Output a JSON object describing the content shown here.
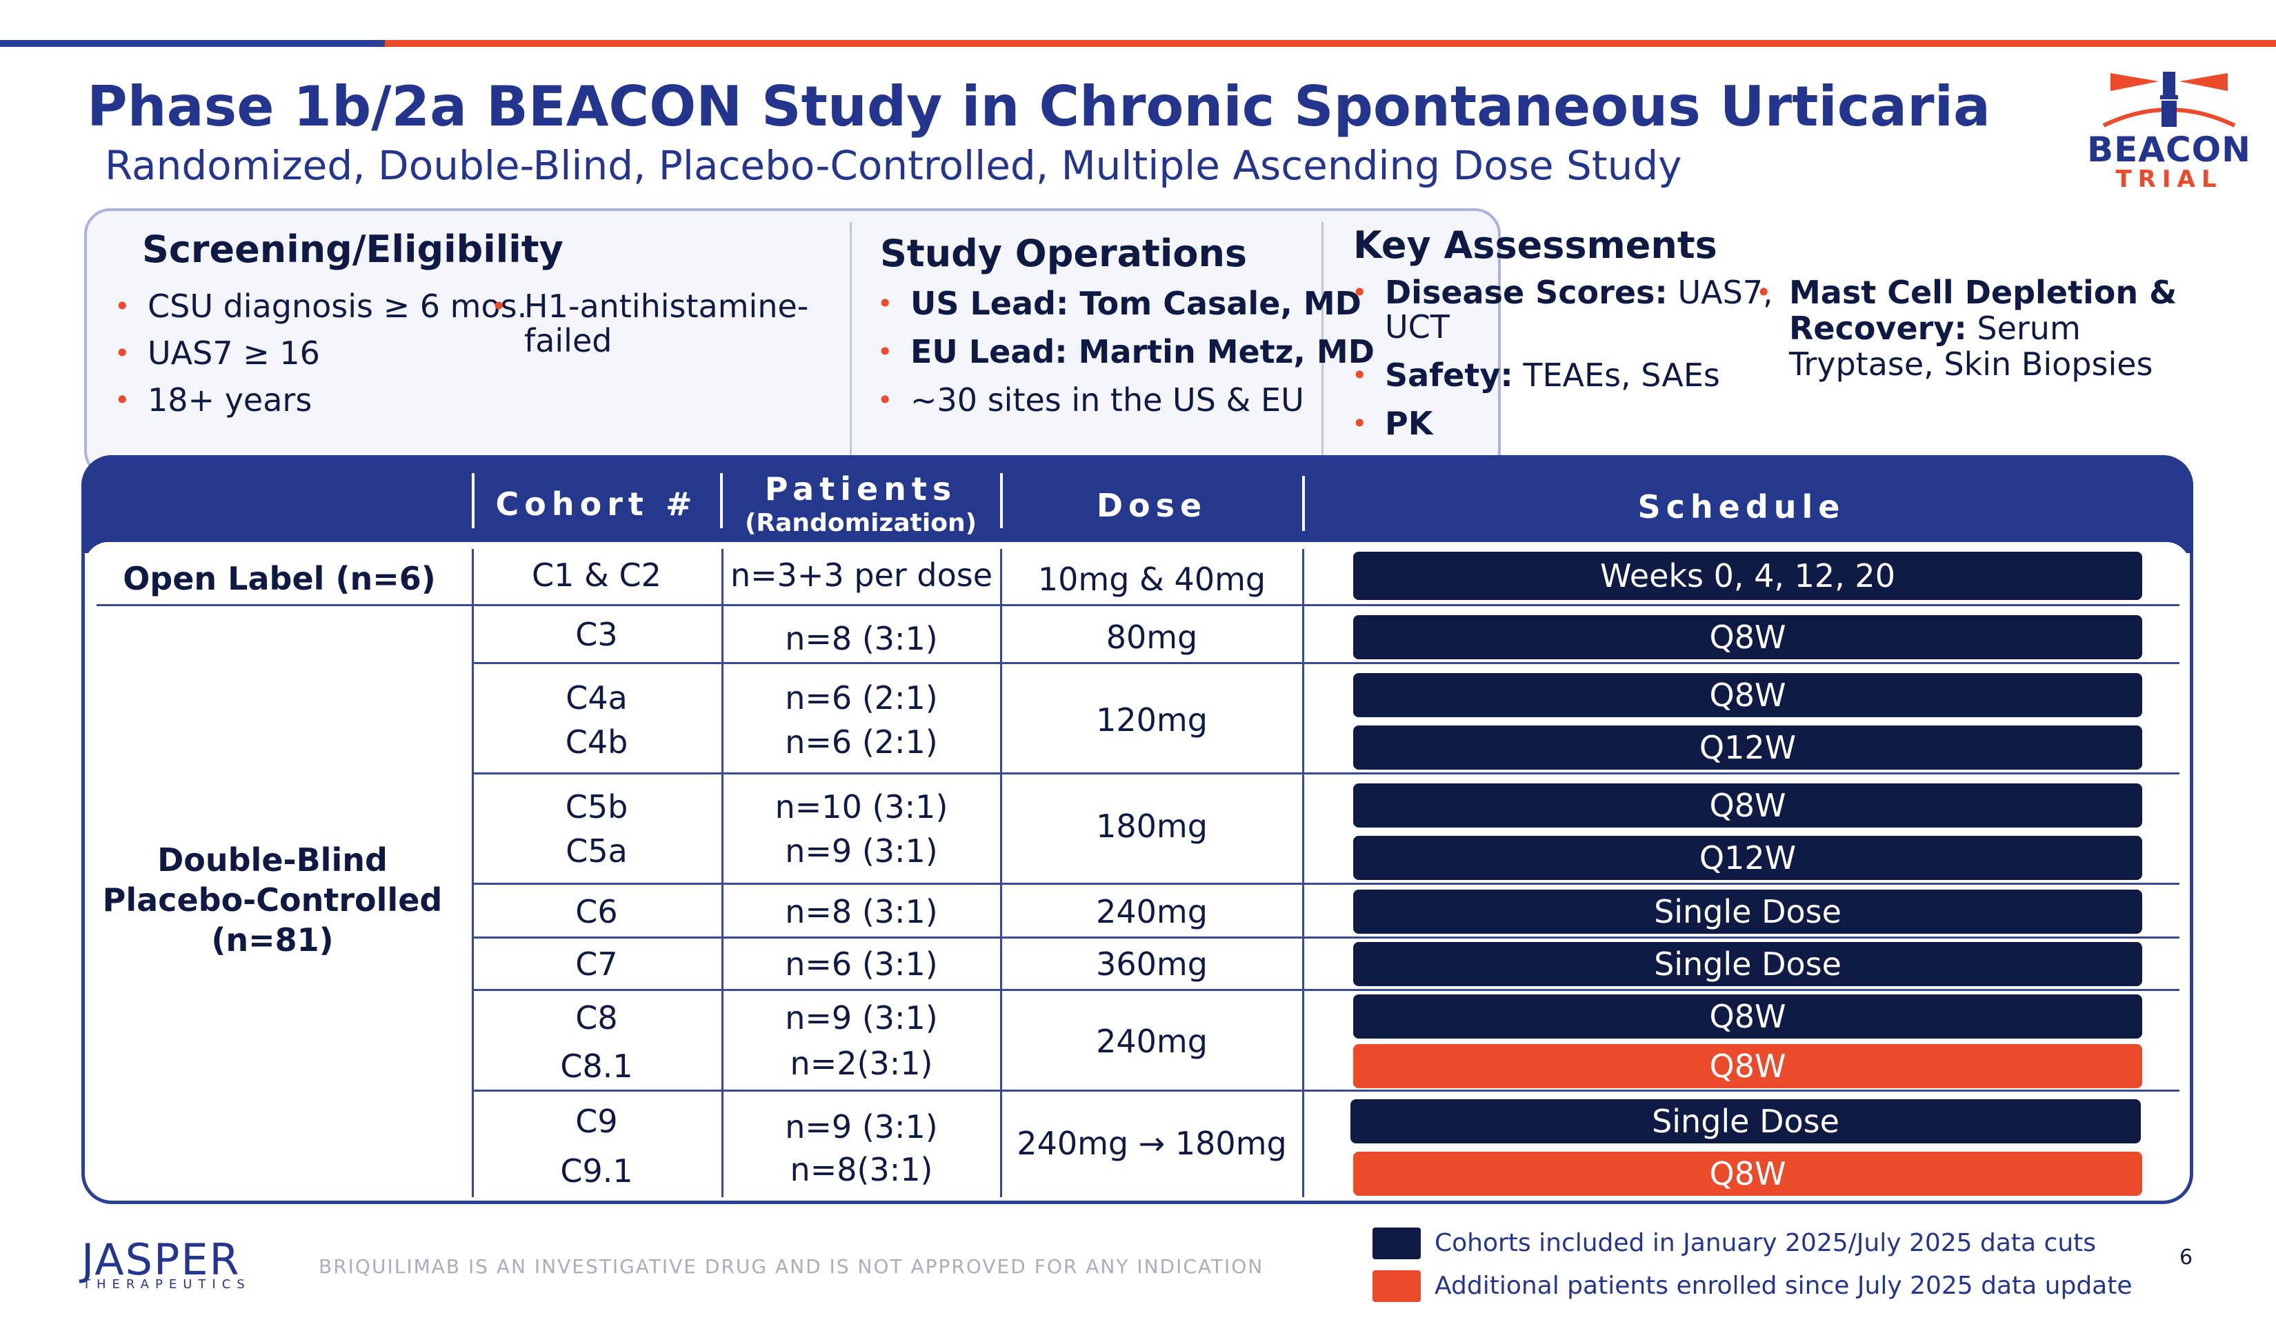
{
  "colors": {
    "navy": "#0f1b45",
    "blue": "#24358e",
    "orange": "#ea4b2b"
  },
  "title": "Phase 1b/2a BEACON Study in Chronic Spontaneous Urticaria",
  "subtitle": "Randomized, Double-Blind, Placebo-Controlled, Multiple Ascending Dose Study",
  "logo": {
    "word": "BEACON",
    "trial": "TRIAL"
  },
  "screening": {
    "heading": "Screening/Eligibility",
    "items": [
      "CSU diagnosis ≥ 6 mos.",
      "UAS7 ≥ 16",
      "18+ years"
    ],
    "item_extra_line1": "H1-antihistamine-",
    "item_extra_line2": "failed"
  },
  "operations": {
    "heading": "Study Operations",
    "us_label": "US Lead: Tom Casale, MD",
    "eu_label": "EU Lead: Martin Metz, MD",
    "sites": "~30 sites in the US & EU"
  },
  "assessments": {
    "heading": "Key Assessments",
    "disease_label": "Disease Scores:",
    "disease_value_1": "UAS7,",
    "disease_value_2": "UCT",
    "safety_label": "Safety:",
    "safety_value": "TEAEs, SAEs",
    "pk_label": "PK",
    "mast_label_1": "Mast Cell Depletion &",
    "mast_label_2": "Recovery:",
    "mast_value_1": "Serum",
    "mast_value_2": "Tryptase, Skin Biopsies"
  },
  "table": {
    "headers": {
      "cohort": "Cohort #",
      "patients": "Patients",
      "patients_sub": "(Randomization)",
      "dose": "Dose",
      "schedule": "Schedule"
    },
    "groups": {
      "open_label": "Open Label (n=6)",
      "double_blind_1": "Double-Blind",
      "double_blind_2": "Placebo-Controlled",
      "double_blind_3": "(n=81)"
    },
    "rows": [
      {
        "cohort": "C1 & C2",
        "patients": "n=3+3 per dose",
        "dose": "10mg & 40mg",
        "schedule": "Weeks 0, 4, 12, 20"
      },
      {
        "cohort": "C3",
        "patients": "n=8 (3:1)",
        "dose": "80mg",
        "schedule": "Q8W"
      },
      {
        "cohort": "C4a",
        "patients": "n=6 (2:1)",
        "dose": "120mg",
        "schedule": "Q8W"
      },
      {
        "cohort": "C4b",
        "patients": "n=6 (2:1)",
        "schedule": "Q12W"
      },
      {
        "cohort": "C5b",
        "patients": "n=10 (3:1)",
        "dose": "180mg",
        "schedule": "Q8W"
      },
      {
        "cohort": "C5a",
        "patients": "n=9 (3:1)",
        "schedule": "Q12W"
      },
      {
        "cohort": "C6",
        "patients": "n=8 (3:1)",
        "dose": "240mg",
        "schedule": "Single Dose"
      },
      {
        "cohort": "C7",
        "patients": "n=6 (3:1)",
        "dose": "360mg",
        "schedule": "Single Dose"
      },
      {
        "cohort": "C8",
        "patients": "n=9 (3:1)",
        "dose": "240mg",
        "schedule": "Q8W"
      },
      {
        "cohort": "C8.1",
        "patients": "n=2(3:1)",
        "schedule": "Q8W"
      },
      {
        "cohort": "C9",
        "patients": "n=9 (3:1)",
        "dose": "240mg → 180mg",
        "schedule": "Single Dose"
      },
      {
        "cohort": "C9.1",
        "patients": "n=8(3:1)",
        "schedule": "Q8W"
      }
    ]
  },
  "footer": {
    "company": "JASPER",
    "company_sub": "THERAPEUTICS",
    "disclaimer": "BRIQUILIMAB IS AN INVESTIGATIVE DRUG AND IS NOT APPROVED FOR ANY INDICATION",
    "legend_navy": "Cohorts included in January 2025/July 2025 data cuts",
    "legend_orange": "Additional patients enrolled since July 2025 data update",
    "page_number": "6"
  }
}
